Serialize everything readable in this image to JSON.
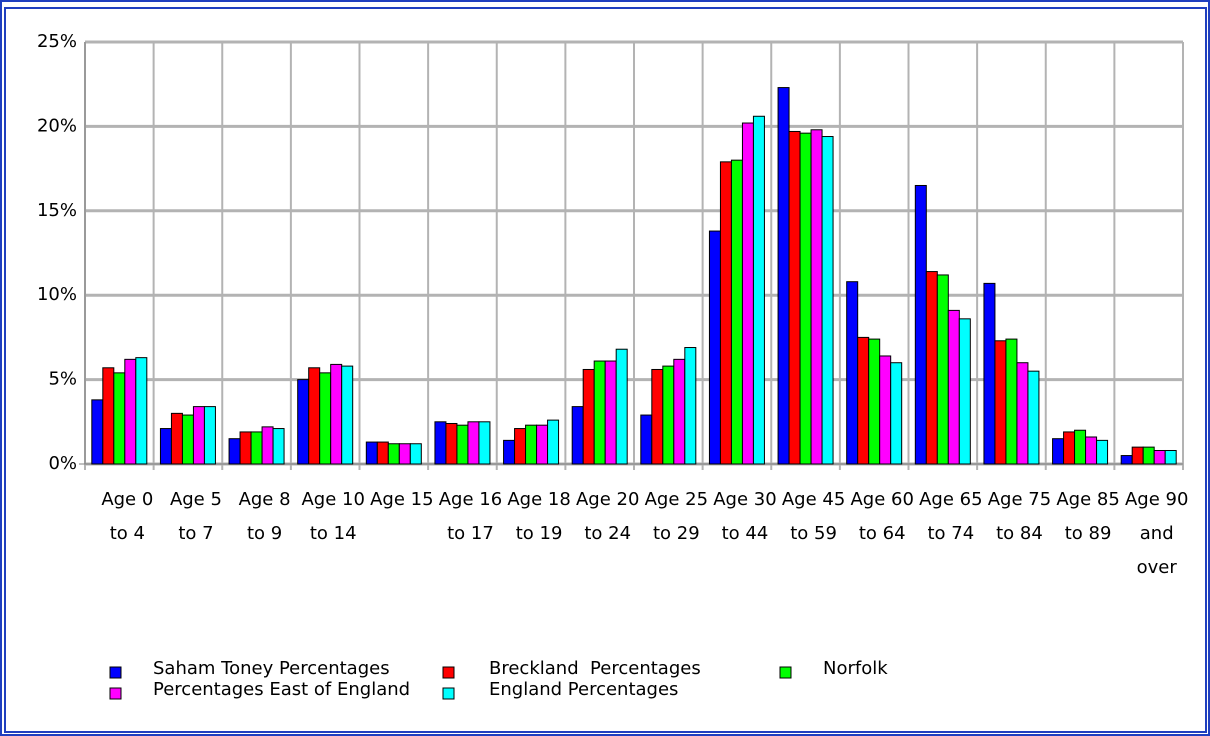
{
  "chart_data": {
    "type": "bar",
    "categories": [
      "Age 0 to 4",
      "Age 5 to 7",
      "Age 8 to 9",
      "Age 10 to 14",
      "Age 15",
      "Age 16 to 17",
      "Age 18 to 19",
      "Age 20 to 24",
      "Age 25 to 29",
      "Age 30 to 44",
      "Age 45 to 59",
      "Age 60 to 64",
      "Age 65 to 74",
      "Age 75 to 84",
      "Age 85 to 89",
      "Age 90 and over"
    ],
    "series": [
      {
        "name": "Saham Toney Percentages",
        "color": "#0000ff",
        "values": [
          3.8,
          2.1,
          1.5,
          5.0,
          1.3,
          2.5,
          1.4,
          3.4,
          2.9,
          13.8,
          22.3,
          10.8,
          16.5,
          10.7,
          1.5,
          0.5
        ]
      },
      {
        "name": "Breckland  Percentages",
        "color": "#ff0000",
        "values": [
          5.7,
          3.0,
          1.9,
          5.7,
          1.3,
          2.4,
          2.1,
          5.6,
          5.6,
          17.9,
          19.7,
          7.5,
          11.4,
          7.3,
          1.9,
          1.0
        ]
      },
      {
        "name": "Norfolk",
        "color": "#00ff00",
        "values": [
          5.4,
          2.9,
          1.9,
          5.4,
          1.2,
          2.3,
          2.3,
          6.1,
          5.8,
          18.0,
          19.6,
          7.4,
          11.2,
          7.4,
          2.0,
          1.0
        ]
      },
      {
        "name": "Percentages East of England",
        "color": "#ff00ff",
        "values": [
          6.2,
          3.4,
          2.2,
          5.9,
          1.2,
          2.5,
          2.3,
          6.1,
          6.2,
          20.2,
          19.8,
          6.4,
          9.1,
          6.0,
          1.6,
          0.8
        ]
      },
      {
        "name": "England Percentages",
        "color": "#00ffff",
        "values": [
          6.3,
          3.4,
          2.1,
          5.8,
          1.2,
          2.5,
          2.6,
          6.8,
          6.9,
          20.6,
          19.4,
          6.0,
          8.6,
          5.5,
          1.4,
          0.8
        ]
      }
    ],
    "ylim": [
      0,
      25
    ],
    "yticks": [
      {
        "value": 0,
        "label": "0%"
      },
      {
        "value": 5,
        "label": "5%"
      },
      {
        "value": 10,
        "label": "10%"
      },
      {
        "value": 15,
        "label": "15%"
      },
      {
        "value": 20,
        "label": "20%"
      },
      {
        "value": 25,
        "label": "25%"
      }
    ],
    "grid": true,
    "legend": "bottom"
  }
}
